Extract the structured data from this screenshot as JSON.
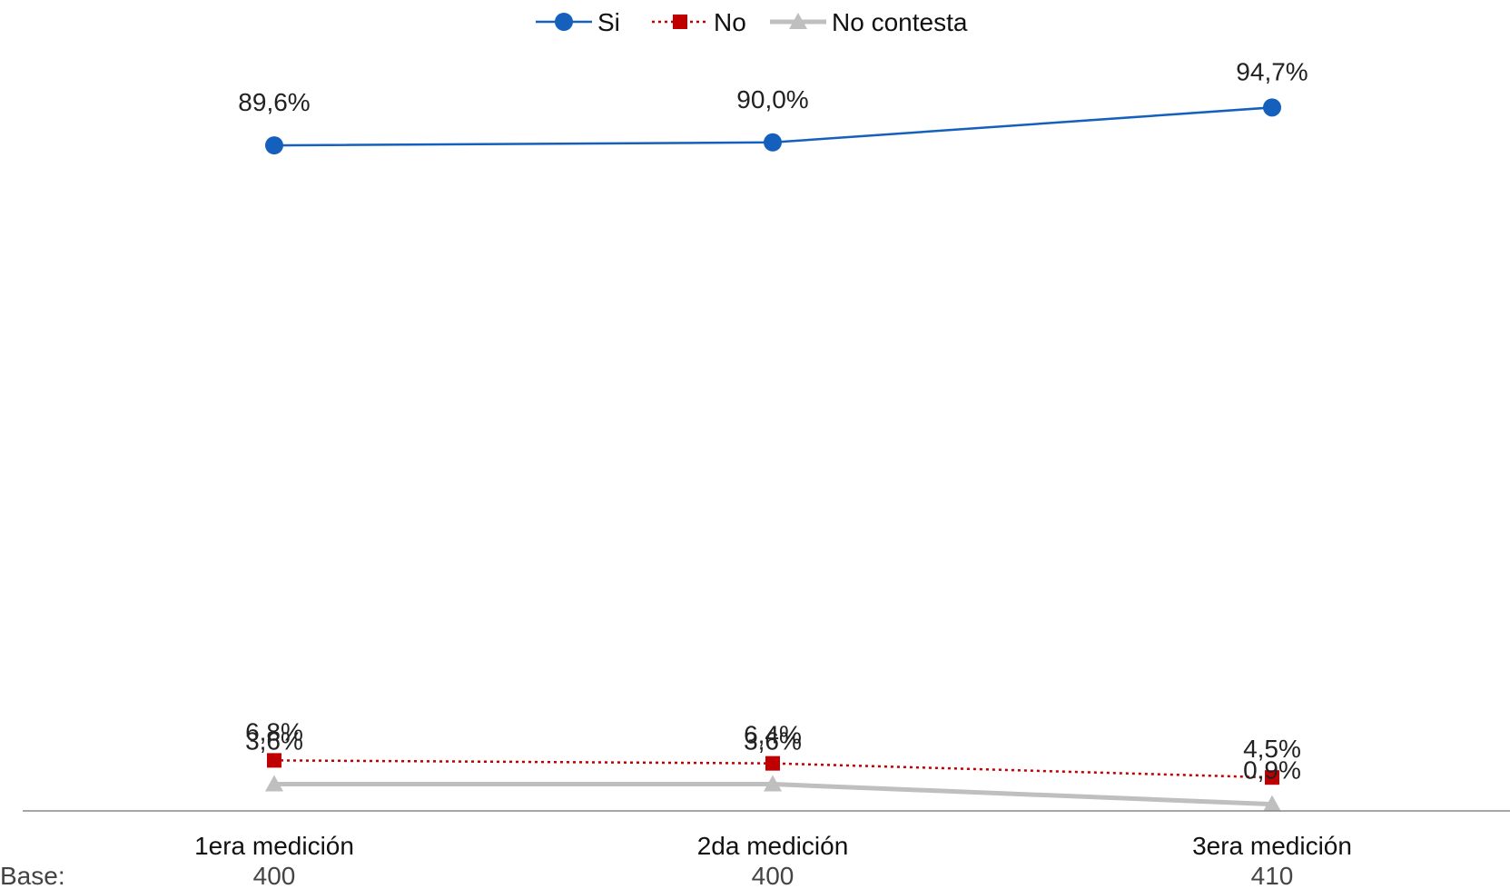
{
  "chart_data": {
    "type": "line",
    "categories": [
      "1era medición",
      "2da medición",
      "3era medición"
    ],
    "series": [
      {
        "name": "Si",
        "values": [
          89.6,
          90.0,
          94.7
        ],
        "labels": [
          "89,6%",
          "90,0%",
          "94,7%"
        ],
        "color": "#1560bd",
        "marker": "circle",
        "style": "solid"
      },
      {
        "name": "No",
        "values": [
          6.8,
          6.4,
          4.5
        ],
        "labels": [
          "6,8%",
          "6,4%",
          "4,5%"
        ],
        "color": "#c00000",
        "marker": "square",
        "style": "dotted"
      },
      {
        "name": "No contesta",
        "values": [
          3.6,
          3.6,
          0.9
        ],
        "labels": [
          "3,6%",
          "3,6%",
          "0,9%"
        ],
        "color": "#bfbfbf",
        "marker": "triangle",
        "style": "solid"
      }
    ],
    "base_label": "Base:",
    "base_values": [
      "400",
      "400",
      "410"
    ],
    "legend_position": "top-center",
    "ylim": [
      0,
      100
    ],
    "grid": false
  }
}
